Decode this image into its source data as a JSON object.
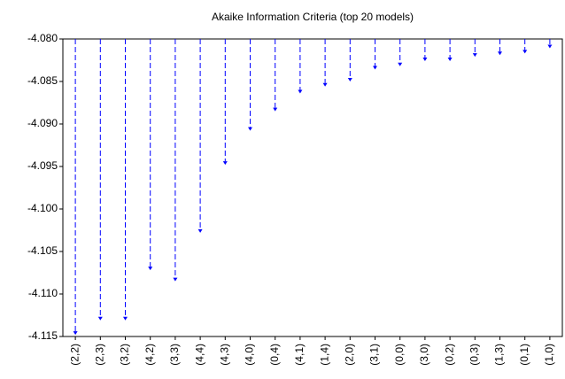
{
  "chart_data": {
    "type": "drop",
    "title": "Akaike Information Criteria (top 20 models)",
    "categories": [
      "(2,2)",
      "(2,3)",
      "(3,2)",
      "(4,2)",
      "(3,3)",
      "(4,4)",
      "(4,3)",
      "(4,0)",
      "(0,4)",
      "(4,1)",
      "(1,4)",
      "(2,0)",
      "(3,1)",
      "(0,0)",
      "(3,0)",
      "(0,2)",
      "(0,3)",
      "(1,3)",
      "(0,1)",
      "(1,0)"
    ],
    "values": [
      -4.1148,
      -4.1131,
      -4.1131,
      -4.1072,
      -4.1085,
      -4.1028,
      -4.0948,
      -4.0908,
      -4.0885,
      -4.0864,
      -4.0856,
      -4.085,
      -4.0836,
      -4.0832,
      -4.0826,
      -4.0826,
      -4.0821,
      -4.0819,
      -4.0817,
      -4.0811
    ],
    "color": "#0000ff",
    "ylim": [
      -4.115,
      -4.08
    ],
    "yticks": [
      {
        "value": -4.115,
        "label": "-4.115"
      },
      {
        "value": -4.11,
        "label": "-4.110"
      },
      {
        "value": -4.105,
        "label": "-4.105"
      },
      {
        "value": -4.1,
        "label": "-4.100"
      },
      {
        "value": -4.095,
        "label": "-4.095"
      },
      {
        "value": -4.09,
        "label": "-4.090"
      },
      {
        "value": -4.085,
        "label": "-4.085"
      },
      {
        "value": -4.08,
        "label": "-4.080"
      }
    ],
    "grid": false
  }
}
